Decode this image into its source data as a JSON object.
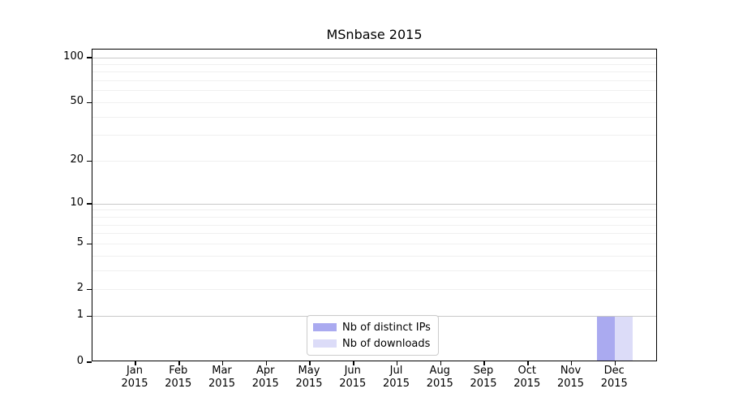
{
  "chart_data": {
    "type": "bar",
    "title": "MSnbase 2015",
    "x_categories": [
      "Jan",
      "Feb",
      "Mar",
      "Apr",
      "May",
      "Jun",
      "Jul",
      "Aug",
      "Sep",
      "Oct",
      "Nov",
      "Dec"
    ],
    "x_sublabel": "2015",
    "series": [
      {
        "name": "Nb of distinct IPs",
        "color": "#aaaaf0",
        "values": [
          0,
          0,
          0,
          0,
          0,
          0,
          0,
          0,
          0,
          0,
          0,
          1
        ]
      },
      {
        "name": "Nb of downloads",
        "color": "#dcdcf8",
        "values": [
          0,
          0,
          0,
          0,
          0,
          0,
          0,
          0,
          0,
          0,
          0,
          1
        ]
      }
    ],
    "y_axis": {
      "scale": "log1p",
      "tick_values": [
        0,
        1,
        2,
        5,
        10,
        20,
        50,
        100
      ],
      "tick_labels": [
        "0",
        "1",
        "2",
        "5",
        "10",
        "20",
        "50",
        "100"
      ],
      "range_top_value": 113
    },
    "grid": {
      "major_values": [
        1,
        10,
        100
      ],
      "minor_values": [
        2,
        3,
        4,
        5,
        6,
        7,
        8,
        9,
        20,
        30,
        40,
        50,
        60,
        70,
        80,
        90
      ]
    },
    "legend_entries": [
      "Nb of distinct IPs",
      "Nb of downloads"
    ],
    "colors": {
      "bar_ips": "#aaaaf0",
      "bar_downloads": "#dcdcf8",
      "grid_major": "#c8c8c8",
      "grid_minor": "#f0f0f0",
      "spine": "#000000"
    }
  }
}
